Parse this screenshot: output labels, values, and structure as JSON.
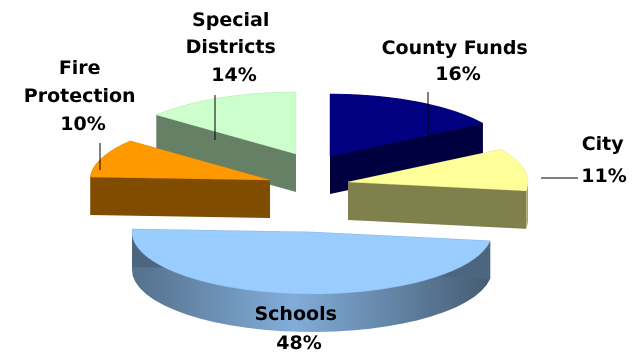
{
  "chart_data": {
    "type": "pie",
    "style": "3d-exploded",
    "title": "",
    "slices": [
      {
        "label": "County Funds",
        "label_lines": [
          "County Funds",
          "16%"
        ],
        "value": 16,
        "percent_label": "16%",
        "color": "#000080"
      },
      {
        "label": "City",
        "label_lines": [
          "City",
          "11%"
        ],
        "value": 11,
        "percent_label": "11%",
        "color": "#FFFF99"
      },
      {
        "label": "Schools",
        "label_lines": [
          "Schools",
          "48%"
        ],
        "value": 48,
        "percent_label": "48%",
        "color": "#99CCFF"
      },
      {
        "label": "Fire Protection",
        "label_lines": [
          "Fire",
          "Protection",
          "10%"
        ],
        "value": 10,
        "percent_label": "10%",
        "color": "#FF9900"
      },
      {
        "label": "Special Districts",
        "label_lines": [
          "Special",
          "Districts",
          "14%"
        ],
        "value": 14,
        "percent_label": "14%",
        "color": "#CCFFCC"
      }
    ],
    "legend": "none"
  }
}
